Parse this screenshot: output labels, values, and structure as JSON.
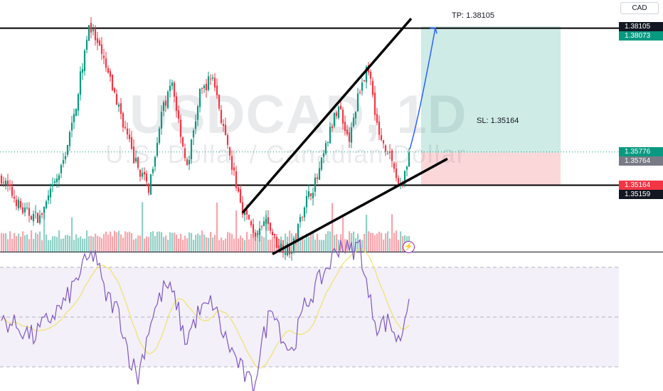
{
  "currency": "CAD",
  "watermark": {
    "symbol": "USDCAD, 1D",
    "name": "U.S. Dollar / Canadian Dollar"
  },
  "annotations": {
    "tp_label": "TP: 1.38105",
    "sl_label": "SL: 1.35164"
  },
  "price_scale": {
    "labels": [
      {
        "name": "tp-price-label",
        "text": "1.38105",
        "value": 1.38105,
        "bg": "#131722"
      },
      {
        "name": "upper-line-price-label",
        "text": "1.38073",
        "value": 1.38073,
        "bg": "#089981"
      },
      {
        "name": "last-price-label",
        "text": "1.35776",
        "value": 1.35776,
        "bg": "#089981"
      },
      {
        "name": "entry-price-label",
        "text": "1.35764",
        "value": 1.35764,
        "bg": "#787b86"
      },
      {
        "name": "sl-price-label",
        "text": "1.35164",
        "value": 1.35164,
        "bg": "#f23645"
      },
      {
        "name": "lower-line-price-label",
        "text": "1.35159",
        "value": 1.35159,
        "bg": "#131722"
      }
    ]
  },
  "colors": {
    "up": "#089981",
    "down": "#f23645",
    "volume_up": "rgba(8,153,129,0.45)",
    "volume_down": "rgba(242,54,69,0.45)",
    "rsi_line": "#7e57c2",
    "rsi_ma": "#f0e26a",
    "rsi_band": "rgba(126,87,194,0.09)",
    "profit_zone": "rgba(8,153,129,0.2)",
    "loss_zone": "rgba(242,54,69,0.2)"
  },
  "chart_data": {
    "type": "candlestick",
    "symbol": "USDCAD",
    "timeframe": "1D",
    "bars": 192,
    "ylim": [
      1.339,
      1.3845
    ],
    "horizontal_levels": [
      1.38073,
      1.35159
    ],
    "trade": {
      "entry": 1.35764,
      "take_profit": 1.38105,
      "stop_loss": 1.35164,
      "last_price": 1.35776
    },
    "channel": {
      "upper": [
        [
          113,
          1.3465
        ],
        [
          192,
          1.3825
        ]
      ],
      "lower": [
        [
          127,
          1.3388
        ],
        [
          209,
          1.3565
        ]
      ]
    },
    "close_anchors": [
      [
        0,
        1.353
      ],
      [
        10,
        1.3468
      ],
      [
        18,
        1.3455
      ],
      [
        28,
        1.3545
      ],
      [
        34,
        1.3642
      ],
      [
        41,
        1.3815
      ],
      [
        48,
        1.3745
      ],
      [
        55,
        1.366
      ],
      [
        62,
        1.3565
      ],
      [
        69,
        1.351
      ],
      [
        75,
        1.3648
      ],
      [
        80,
        1.3705
      ],
      [
        87,
        1.3546
      ],
      [
        93,
        1.3685
      ],
      [
        99,
        1.372
      ],
      [
        106,
        1.358
      ],
      [
        113,
        1.3472
      ],
      [
        120,
        1.3418
      ],
      [
        124,
        1.3452
      ],
      [
        129,
        1.3408
      ],
      [
        136,
        1.3392
      ],
      [
        142,
        1.3482
      ],
      [
        148,
        1.3528
      ],
      [
        154,
        1.3615
      ],
      [
        158,
        1.3665
      ],
      [
        163,
        1.3598
      ],
      [
        168,
        1.3698
      ],
      [
        172,
        1.3735
      ],
      [
        177,
        1.3605
      ],
      [
        182,
        1.3575
      ],
      [
        186,
        1.3518
      ],
      [
        188,
        1.3525
      ],
      [
        191,
        1.3576
      ]
    ],
    "rsi": {
      "levels": [
        70,
        50,
        30
      ],
      "anchors": [
        [
          0,
          49
        ],
        [
          8,
          46
        ],
        [
          15,
          42
        ],
        [
          22,
          49
        ],
        [
          30,
          56
        ],
        [
          38,
          70
        ],
        [
          44,
          76
        ],
        [
          48,
          60
        ],
        [
          55,
          52
        ],
        [
          60,
          34
        ],
        [
          64,
          26
        ],
        [
          70,
          49
        ],
        [
          77,
          63
        ],
        [
          82,
          56
        ],
        [
          86,
          40
        ],
        [
          92,
          51
        ],
        [
          99,
          56
        ],
        [
          104,
          43
        ],
        [
          110,
          33
        ],
        [
          115,
          25
        ],
        [
          118,
          22
        ],
        [
          122,
          39
        ],
        [
          127,
          56
        ],
        [
          132,
          41
        ],
        [
          136,
          36
        ],
        [
          142,
          54
        ],
        [
          148,
          63
        ],
        [
          154,
          72
        ],
        [
          159,
          80
        ],
        [
          163,
          76
        ],
        [
          168,
          79
        ],
        [
          172,
          58
        ],
        [
          176,
          47
        ],
        [
          182,
          48
        ],
        [
          186,
          40
        ],
        [
          188,
          45
        ],
        [
          191,
          60
        ]
      ]
    }
  }
}
